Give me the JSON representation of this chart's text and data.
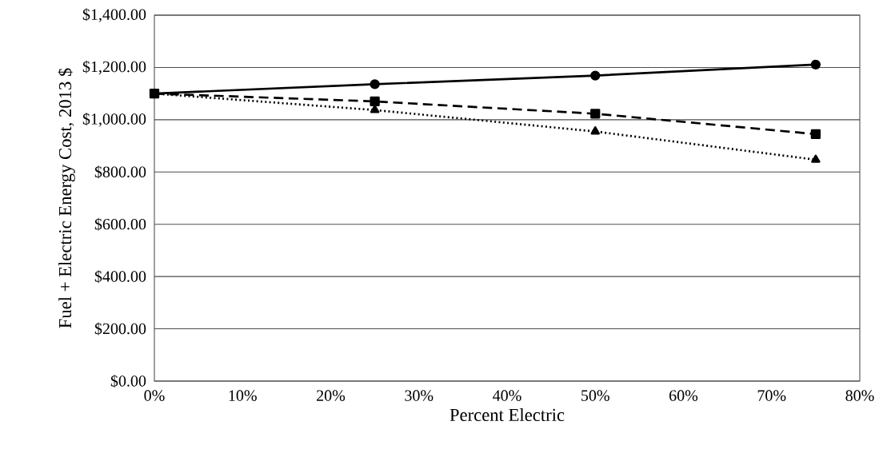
{
  "chart_data": {
    "type": "line",
    "xlabel": "Percent Electric",
    "ylabel": "Fuel + Electric Energy Cost, 2013 $",
    "x": [
      0,
      25,
      50,
      75
    ],
    "series": [
      {
        "color": "#000000",
        "line_style": "solid",
        "marker": "circle",
        "values": [
          1100,
          1136,
          1169,
          1211
        ]
      },
      {
        "color": "#000000",
        "line_style": "dashed",
        "marker": "square",
        "values": [
          1100,
          1070,
          1023,
          945
        ]
      },
      {
        "color": "#000000",
        "line_style": "dotted",
        "marker": "triangle",
        "values": [
          1100,
          1037,
          955,
          847
        ]
      }
    ],
    "xlim": [
      0,
      80
    ],
    "xticks": [
      {
        "value": 0,
        "label": "0%"
      },
      {
        "value": 10,
        "label": "10%"
      },
      {
        "value": 20,
        "label": "20%"
      },
      {
        "value": 30,
        "label": "30%"
      },
      {
        "value": 40,
        "label": "40%"
      },
      {
        "value": 50,
        "label": "50%"
      },
      {
        "value": 60,
        "label": "60%"
      },
      {
        "value": 70,
        "label": "70%"
      },
      {
        "value": 80,
        "label": "80%"
      }
    ],
    "ylim": [
      0,
      1400
    ],
    "yticks": [
      {
        "value": 0,
        "label": "$0.00"
      },
      {
        "value": 200,
        "label": "$200.00"
      },
      {
        "value": 400,
        "label": "$400.00"
      },
      {
        "value": 600,
        "label": "$600.00"
      },
      {
        "value": 800,
        "label": "$800.00"
      },
      {
        "value": 1000,
        "label": "$1,000.00"
      },
      {
        "value": 1200,
        "label": "$1,200.00"
      },
      {
        "value": 1400,
        "label": "$1,400.00"
      }
    ],
    "grid": "y"
  }
}
